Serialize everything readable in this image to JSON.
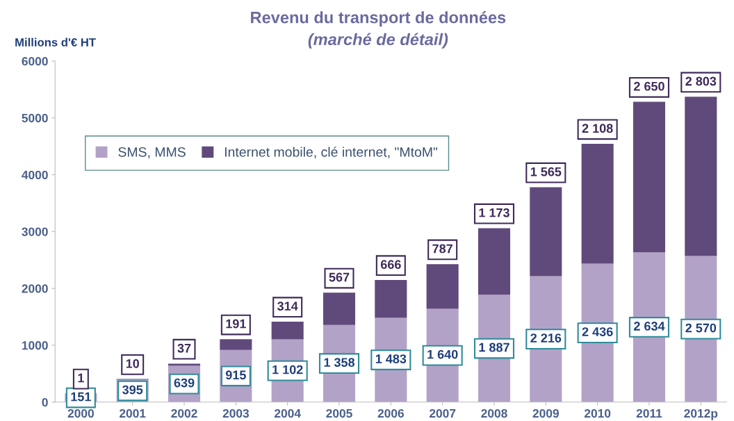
{
  "chart_data": {
    "type": "bar",
    "title": "Revenu du transport de données",
    "subtitle": "(marché de détail)",
    "ylabel": "Millions d'€ HT",
    "categories": [
      "2000",
      "2001",
      "2002",
      "2003",
      "2004",
      "2005",
      "2006",
      "2007",
      "2008",
      "2009",
      "2010",
      "2011",
      "2012p"
    ],
    "stacked": true,
    "ylim": [
      0,
      6000
    ],
    "yticks": [
      0,
      1000,
      2000,
      3000,
      4000,
      5000,
      6000
    ],
    "grid": false,
    "legend": "top left",
    "series": [
      {
        "name": "SMS, MMS",
        "color": "#b3a2c7",
        "values": [
          151,
          395,
          639,
          915,
          1102,
          1358,
          1483,
          1640,
          1887,
          2216,
          2436,
          2634,
          2570
        ],
        "value_labels": [
          "151",
          "395",
          "639",
          "915",
          "1 102",
          "1 358",
          "1 483",
          "1 640",
          "1 887",
          "2 216",
          "2 436",
          "2 634",
          "2 570"
        ]
      },
      {
        "name": "Internet mobile, clé internet, \"MtoM\"",
        "color": "#604a7b",
        "values": [
          1,
          10,
          37,
          191,
          314,
          567,
          666,
          787,
          1173,
          1565,
          2108,
          2650,
          2803
        ],
        "value_labels": [
          "1",
          "10",
          "37",
          "191",
          "314",
          "567",
          "666",
          "787",
          "1 173",
          "1 565",
          "2 108",
          "2 650",
          "2 803"
        ]
      }
    ]
  }
}
